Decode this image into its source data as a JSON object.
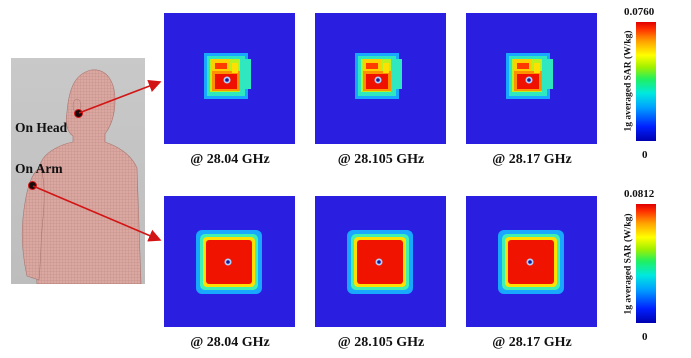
{
  "phantom": {
    "labels": {
      "head": "On Head",
      "arm": "On Arm"
    }
  },
  "colorbars": [
    {
      "max": "0.0760",
      "min": "0",
      "title": "1g averaged SAR (W/kg)"
    },
    {
      "max": "0.0812",
      "min": "0",
      "title": "1g averaged SAR (W/kg)"
    }
  ],
  "rows": [
    {
      "position": "head",
      "frequencies": [
        "@ 28.04 GHz",
        "@ 28.105 GHz",
        "@ 28.17 GHz"
      ]
    },
    {
      "position": "arm",
      "frequencies": [
        "@ 28.04 GHz",
        "@ 28.105 GHz",
        "@ 28.17 GHz"
      ]
    }
  ],
  "colors": {
    "background_blue": "#2a1fe0",
    "arrow_red": "#d31414",
    "phantom_skin": "#d9a7a2"
  }
}
